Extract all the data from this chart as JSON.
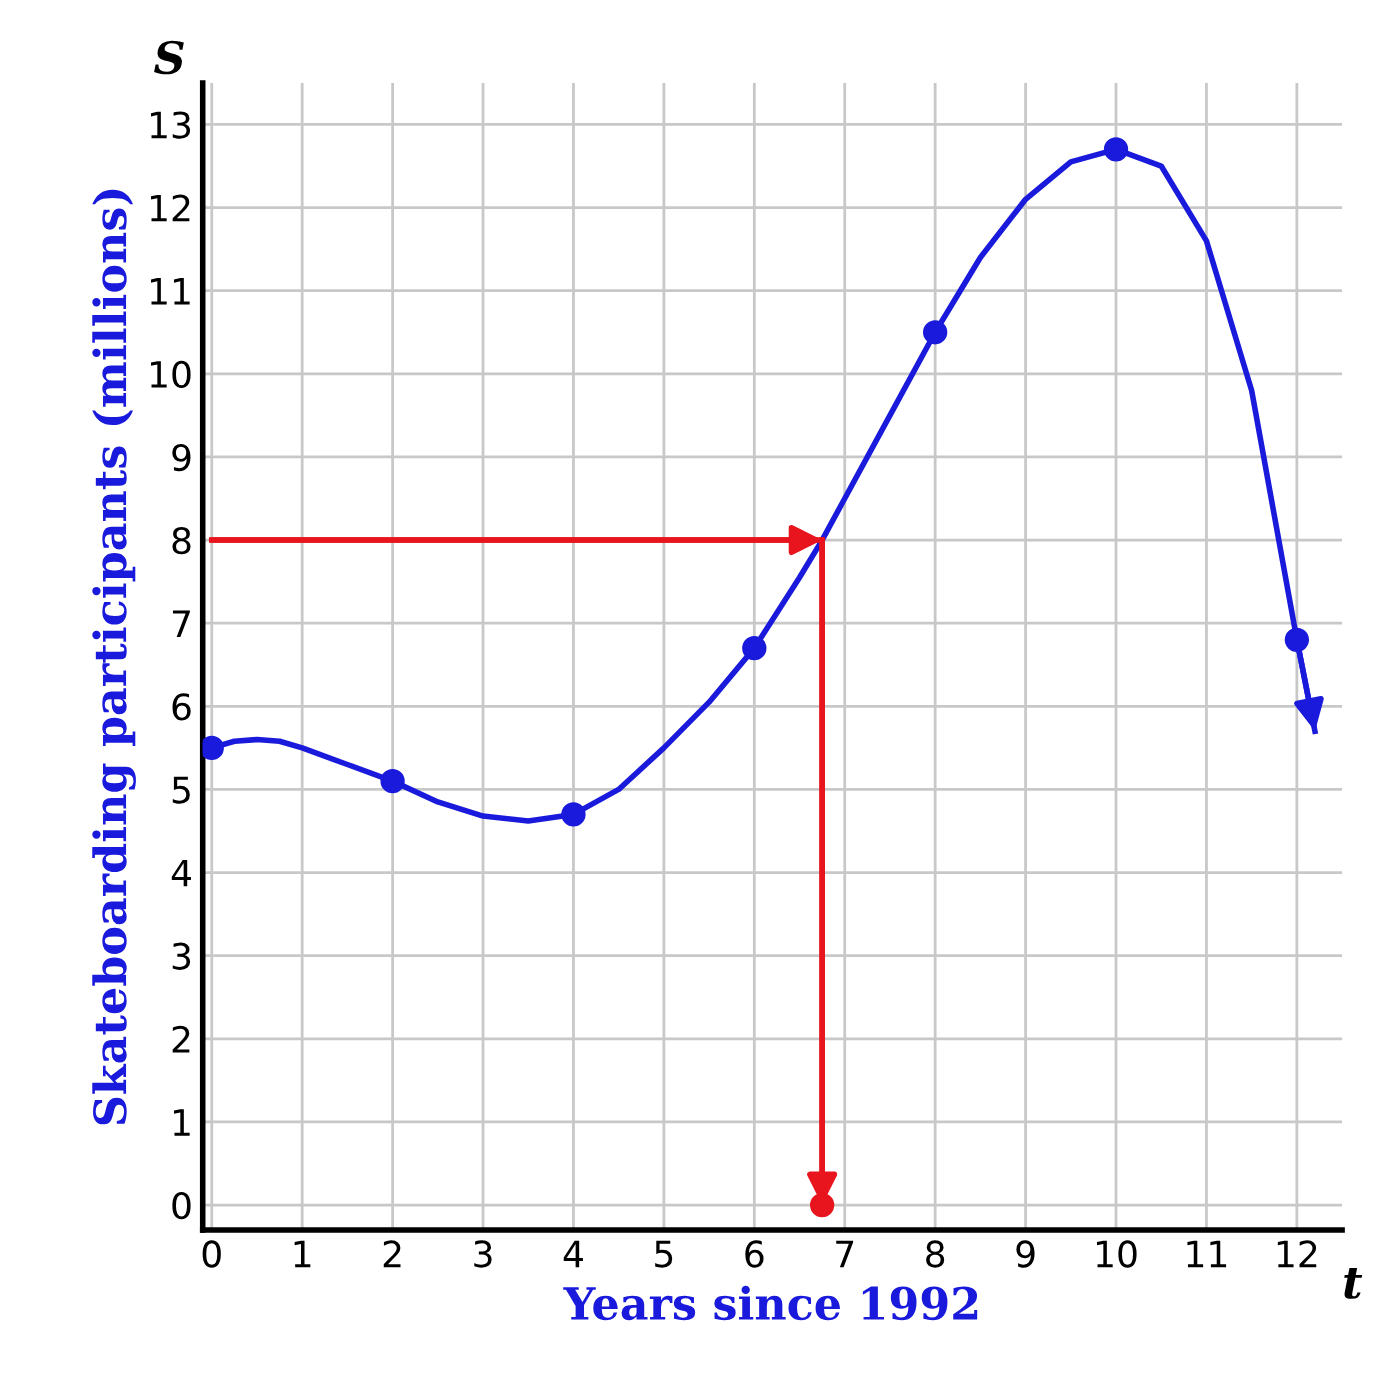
{
  "chart_data": {
    "type": "line",
    "xlabel": "Years since 1992",
    "ylabel": "Skateboarding participants (millions)",
    "annotations": [
      "S",
      "t"
    ],
    "xlim": [
      -0.1,
      12.5
    ],
    "ylim": [
      -0.3,
      13.5
    ],
    "xticks": [
      0,
      1,
      2,
      3,
      4,
      5,
      6,
      7,
      8,
      9,
      10,
      11,
      12
    ],
    "yticks": [
      0,
      1,
      2,
      3,
      4,
      5,
      6,
      7,
      8,
      9,
      10,
      11,
      12,
      13
    ],
    "grid": true,
    "legend": false,
    "series": [
      {
        "color": "#1a1adc",
        "marker": "none",
        "x": [
          0,
          0.25,
          0.5,
          0.75,
          1,
          1.5,
          2,
          2.5,
          3,
          3.5,
          4,
          4.5,
          5,
          5.5,
          6,
          6.5,
          6.75,
          7,
          7.5,
          8,
          8.5,
          9,
          9.5,
          10,
          10.5,
          11,
          11.5,
          12,
          12.2
        ],
        "values": [
          5.5,
          5.58,
          5.6,
          5.58,
          5.5,
          5.3,
          5.1,
          4.85,
          4.68,
          4.62,
          4.7,
          5.0,
          5.5,
          6.05,
          6.7,
          7.55,
          8.0,
          8.5,
          9.5,
          10.5,
          11.4,
          12.1,
          12.55,
          12.7,
          12.5,
          11.6,
          9.8,
          6.8,
          5.7
        ]
      },
      {
        "type": "scatter",
        "color": "#1a1adc",
        "marker": "circle",
        "x": [
          0,
          2,
          4,
          6,
          8,
          10,
          12
        ],
        "values": [
          5.5,
          5.1,
          4.7,
          6.7,
          10.5,
          12.7,
          6.8
        ]
      },
      {
        "type": "line",
        "color": "#e8141e",
        "marker": "none",
        "x": [
          0,
          6.75
        ],
        "values": [
          8,
          8
        ]
      },
      {
        "type": "line",
        "color": "#e8141e",
        "marker": "none",
        "x": [
          6.75,
          6.75
        ],
        "values": [
          8,
          0
        ]
      },
      {
        "type": "scatter",
        "color": "#e8141e",
        "marker": "circle",
        "x": [
          6.75
        ],
        "values": [
          0
        ]
      }
    ]
  }
}
